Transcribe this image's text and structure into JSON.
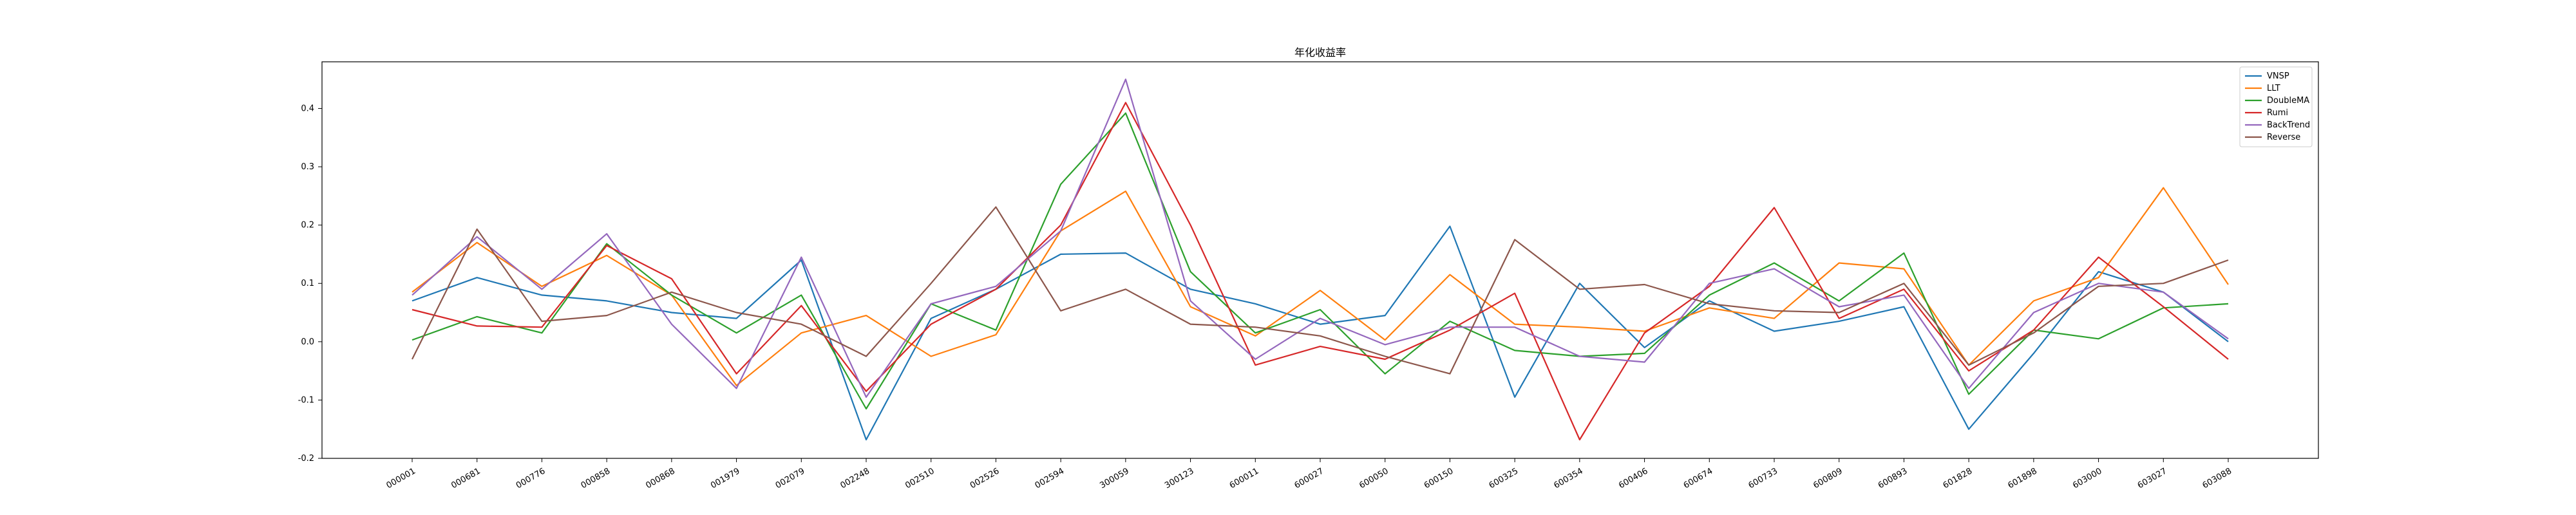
{
  "chart_data": {
    "type": "line",
    "title": "年化收益率",
    "xlabel": "",
    "ylabel": "",
    "ylim": [
      -0.2,
      0.48
    ],
    "yticks": [
      -0.2,
      -0.1,
      0.0,
      0.1,
      0.2,
      0.3,
      0.4
    ],
    "ytick_labels": [
      "-0.2",
      "-0.1",
      "0.0",
      "0.1",
      "0.2",
      "0.3",
      "0.4"
    ],
    "legend_position": "top-right",
    "grid": false,
    "categories": [
      "000001",
      "000681",
      "000776",
      "000858",
      "000868",
      "001979",
      "002079",
      "002248",
      "002510",
      "002526",
      "002594",
      "300059",
      "300123",
      "600011",
      "600027",
      "600050",
      "600150",
      "600325",
      "600354",
      "600406",
      "600674",
      "600733",
      "600809",
      "600893",
      "601828",
      "601898",
      "603000",
      "603027",
      "603088"
    ],
    "series": [
      {
        "name": "VNSP",
        "color": "#1f77b4",
        "values": [
          0.07,
          0.11,
          0.08,
          0.07,
          0.05,
          0.04,
          0.14,
          -0.168,
          0.04,
          0.09,
          0.15,
          0.152,
          0.09,
          0.065,
          0.03,
          0.045,
          0.198,
          -0.095,
          0.1,
          -0.01,
          0.07,
          0.018,
          0.035,
          0.06,
          -0.15,
          -0.02,
          0.12,
          0.085,
          0.0
        ]
      },
      {
        "name": "LLT",
        "color": "#ff7f0e",
        "values": [
          0.085,
          0.17,
          0.095,
          0.148,
          0.08,
          -0.075,
          0.015,
          0.045,
          -0.025,
          0.012,
          0.19,
          0.258,
          0.06,
          0.01,
          0.088,
          0.003,
          0.115,
          0.03,
          0.025,
          0.018,
          0.058,
          0.04,
          0.135,
          0.125,
          -0.04,
          0.07,
          0.11,
          0.264,
          0.098
        ]
      },
      {
        "name": "DoubleMA",
        "color": "#2ca02c",
        "values": [
          0.003,
          0.043,
          0.015,
          0.168,
          0.08,
          0.015,
          0.08,
          -0.115,
          0.065,
          0.02,
          0.27,
          0.392,
          0.12,
          0.015,
          0.055,
          -0.055,
          0.035,
          -0.015,
          -0.025,
          -0.02,
          0.08,
          0.135,
          0.07,
          0.152,
          -0.09,
          0.02,
          0.005,
          0.058,
          0.065
        ]
      },
      {
        "name": "Rumi",
        "color": "#d62728",
        "values": [
          0.055,
          0.027,
          0.025,
          0.165,
          0.108,
          -0.055,
          0.062,
          -0.085,
          0.03,
          0.09,
          0.2,
          0.41,
          0.2,
          -0.04,
          -0.008,
          -0.03,
          0.02,
          0.083,
          -0.168,
          0.015,
          0.095,
          0.23,
          0.04,
          0.09,
          -0.05,
          0.02,
          0.145,
          0.06,
          -0.03
        ]
      },
      {
        "name": "BackTrend",
        "color": "#9467bd",
        "values": [
          0.08,
          0.18,
          0.09,
          0.185,
          0.03,
          -0.08,
          0.145,
          -0.095,
          0.065,
          0.095,
          0.19,
          0.45,
          0.07,
          -0.03,
          0.04,
          -0.005,
          0.025,
          0.025,
          -0.025,
          -0.035,
          0.1,
          0.125,
          0.06,
          0.08,
          -0.08,
          0.05,
          0.1,
          0.085,
          0.005
        ]
      },
      {
        "name": "Reverse",
        "color": "#8c564b",
        "values": [
          -0.03,
          0.193,
          0.035,
          0.045,
          0.085,
          0.05,
          0.03,
          -0.025,
          0.1,
          0.231,
          0.053,
          0.09,
          0.03,
          0.025,
          0.01,
          -0.025,
          -0.055,
          0.175,
          0.09,
          0.098,
          0.065,
          0.053,
          0.05,
          0.1,
          -0.04,
          0.015,
          0.095,
          0.1,
          0.14
        ]
      }
    ]
  }
}
